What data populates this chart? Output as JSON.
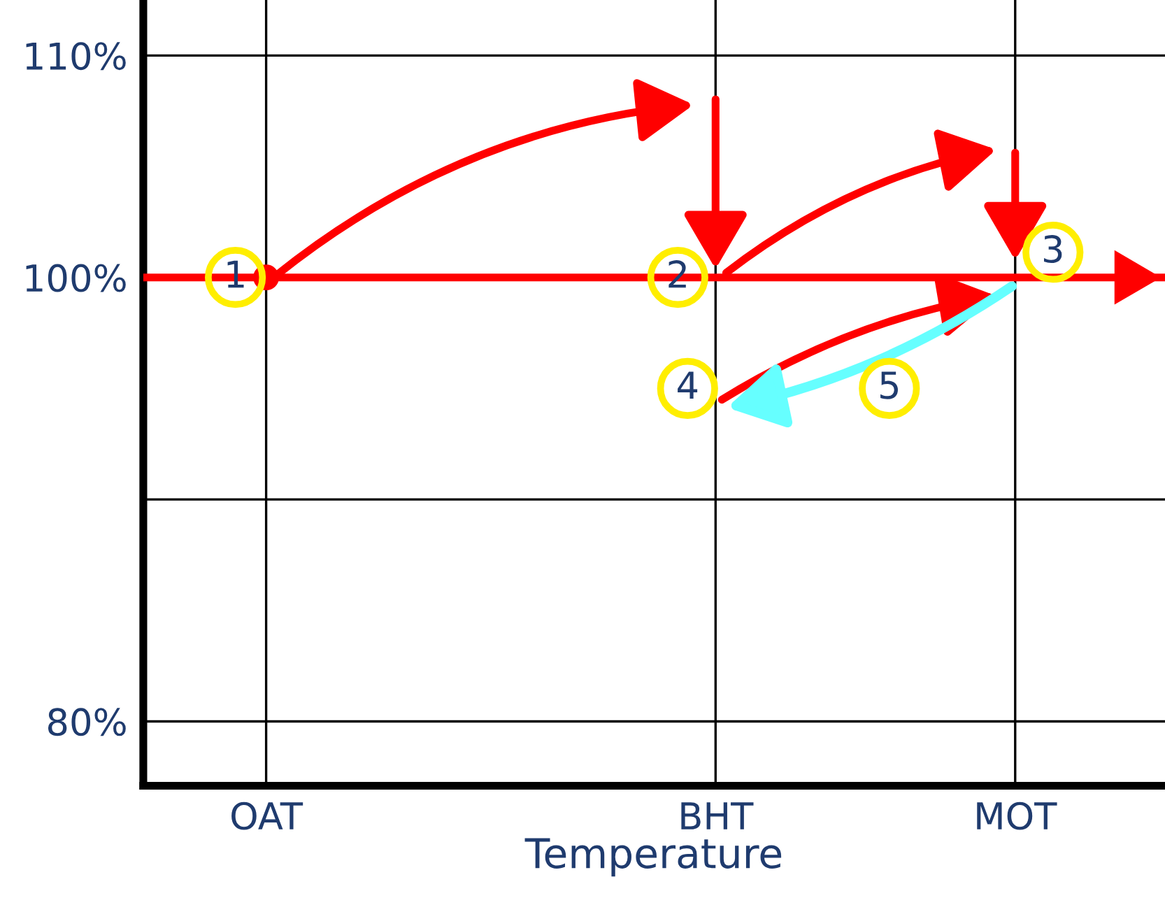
{
  "chart_data": {
    "type": "scatter",
    "xlabel": "Temperature",
    "categories": [
      "OAT",
      null,
      null,
      "BHT",
      null,
      "MOT",
      null
    ],
    "ylim": [
      77.1,
      112.5
    ],
    "yticks": [
      {
        "value": 80,
        "label": "80%"
      },
      {
        "value": 90,
        "label": null
      },
      {
        "value": 100,
        "label": "100%"
      },
      {
        "value": 110,
        "label": "110%"
      }
    ],
    "grid": true,
    "ref_lines": [
      {
        "axis": "y",
        "value": 100,
        "color": "#ff0000"
      }
    ],
    "series": [
      {
        "color": "#ff0000",
        "x": [
          "OAT"
        ],
        "values": [
          100
        ]
      }
    ],
    "annotations": [
      {
        "text": "1",
        "x": "OAT",
        "y": 100
      },
      {
        "text": "2",
        "x": "BHT",
        "y": 100
      },
      {
        "text": "3",
        "x": "MOT",
        "y": 100
      },
      "4",
      "5"
    ]
  }
}
